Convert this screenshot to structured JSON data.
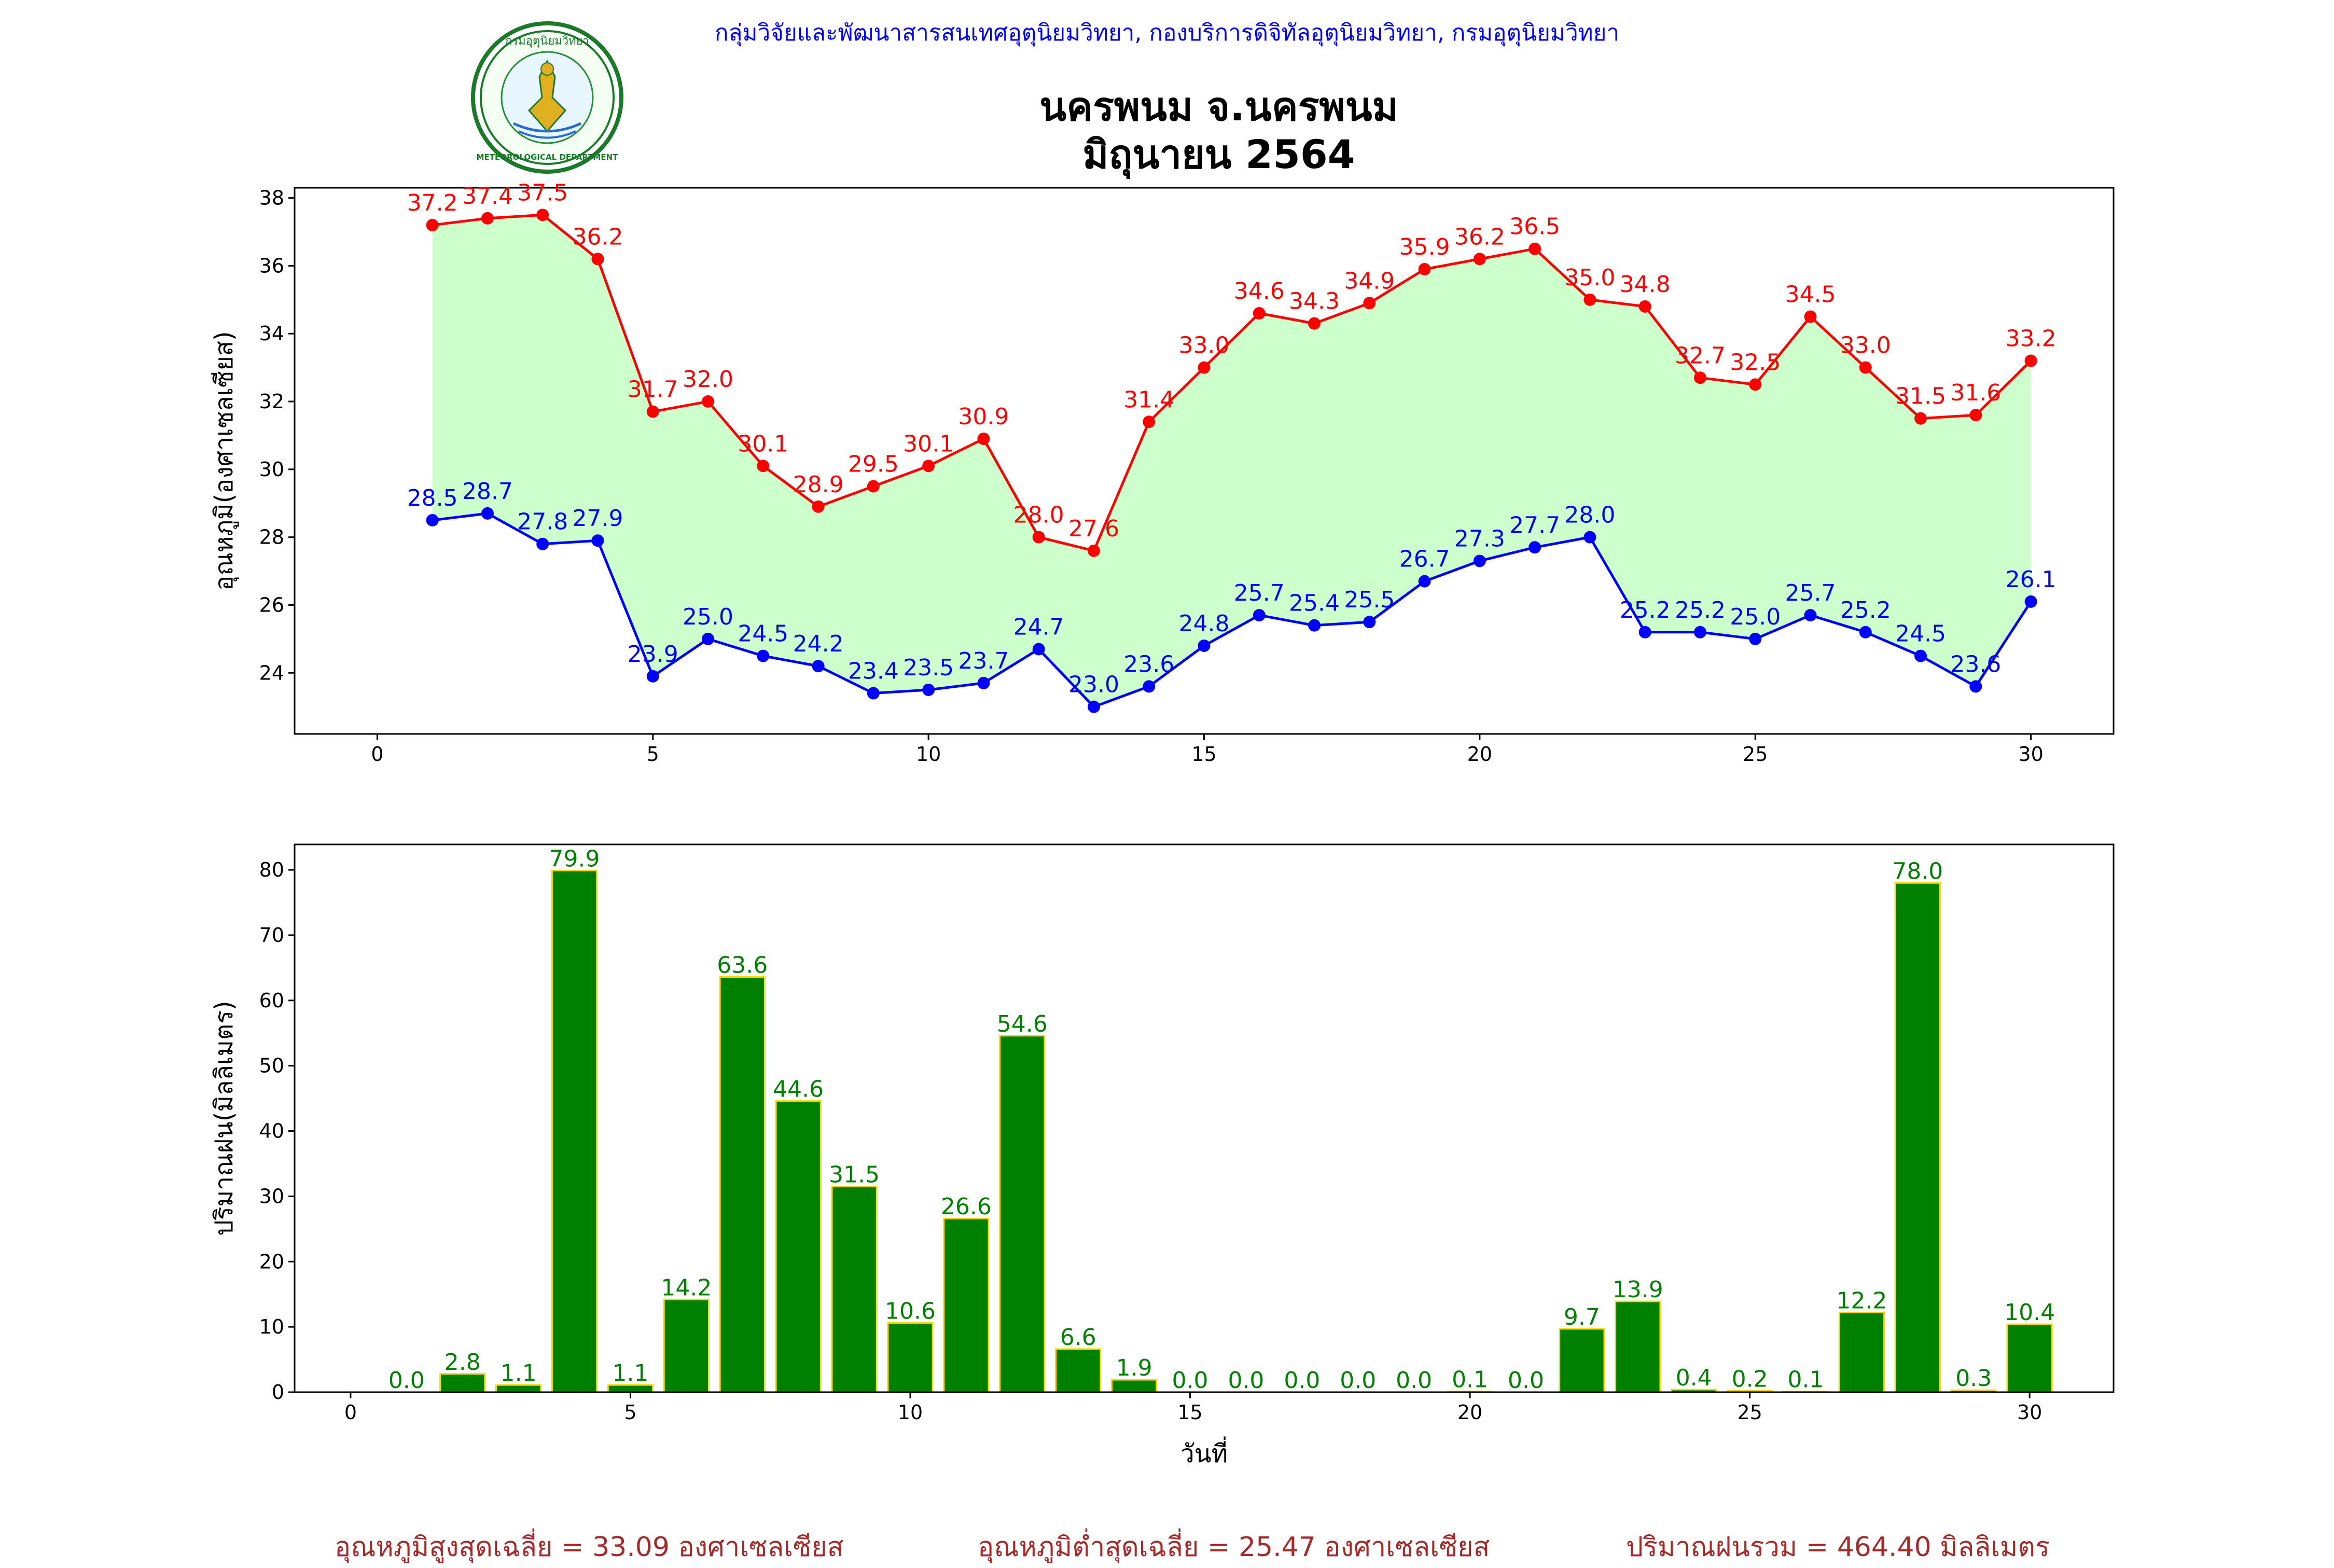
{
  "header": {
    "org_line": "กลุ่มวิจัยและพัฒนาสารสนเทศอุตุนิยมวิทยา, กองบริการดิจิทัลอุตุนิยมวิทยา, กรมอุตุนิยมวิทยา",
    "title_line1": "นครพนม จ.นครพนม",
    "title_line2": "มิถุนายน 2564",
    "logo": {
      "icon": "meteorological-department-seal-icon",
      "text_top": "กรมอุตุนิยมวิทยา",
      "text_bottom": "METEOROLOGICAL DEPARTMENT"
    }
  },
  "chart_data": [
    {
      "type": "line",
      "ylabel": "อุณหภูมิ(องศาเซลเซียส)",
      "xlabel": "",
      "xlim": [
        -1.5,
        31.5
      ],
      "ylim": [
        22.2,
        38.3
      ],
      "xticks": [
        0,
        5,
        10,
        15,
        20,
        25,
        30
      ],
      "yticks": [
        24,
        26,
        28,
        30,
        32,
        34,
        36,
        38
      ],
      "fill_between": true,
      "colors": {
        "max": "#ff0000",
        "min": "#0000ff",
        "fill": "#ccffcc"
      },
      "x": [
        1,
        2,
        3,
        4,
        5,
        6,
        7,
        8,
        9,
        10,
        11,
        12,
        13,
        14,
        15,
        16,
        17,
        18,
        19,
        20,
        21,
        22,
        23,
        24,
        25,
        26,
        27,
        28,
        29,
        30
      ],
      "series": [
        {
          "key": "max",
          "values": [
            37.2,
            37.4,
            37.5,
            36.2,
            31.7,
            32.0,
            30.1,
            28.9,
            29.5,
            30.1,
            30.9,
            28.0,
            27.6,
            31.4,
            33.0,
            34.6,
            34.3,
            34.9,
            35.9,
            36.2,
            36.5,
            35.0,
            34.8,
            32.7,
            32.5,
            34.5,
            33.0,
            31.5,
            31.6,
            33.2
          ]
        },
        {
          "key": "min",
          "values": [
            28.5,
            28.7,
            27.8,
            27.9,
            23.9,
            25.0,
            24.5,
            24.2,
            23.4,
            23.5,
            23.7,
            24.7,
            23.0,
            23.6,
            24.8,
            25.7,
            25.4,
            25.5,
            26.7,
            27.3,
            27.7,
            28.0,
            25.2,
            25.2,
            25.0,
            25.7,
            25.2,
            24.5,
            23.6,
            26.1
          ]
        }
      ]
    },
    {
      "type": "bar",
      "ylabel": "ปริมาณฝน(มิลลิเมตร)",
      "xlabel": "วันที่",
      "xlim": [
        -1,
        31.5
      ],
      "ylim": [
        0,
        83.9
      ],
      "xticks": [
        0,
        5,
        10,
        15,
        20,
        25,
        30
      ],
      "yticks": [
        0,
        10,
        20,
        30,
        40,
        50,
        60,
        70,
        80
      ],
      "colors": {
        "bar": "#008000",
        "edge": "#ffd700",
        "label": "#008000"
      },
      "x": [
        1,
        2,
        3,
        4,
        5,
        6,
        7,
        8,
        9,
        10,
        11,
        12,
        13,
        14,
        15,
        16,
        17,
        18,
        19,
        20,
        21,
        22,
        23,
        24,
        25,
        26,
        27,
        28,
        29,
        30
      ],
      "values": [
        0.0,
        2.8,
        1.1,
        79.9,
        1.1,
        14.2,
        63.6,
        44.6,
        31.5,
        10.6,
        26.6,
        54.6,
        6.6,
        1.9,
        0.0,
        0.0,
        0.0,
        0.0,
        0.0,
        0.1,
        0.0,
        9.7,
        13.9,
        0.4,
        0.2,
        0.1,
        12.2,
        78.0,
        0.3,
        10.4
      ]
    }
  ],
  "footer": {
    "avg_max": "อุณหภูมิสูงสุดเฉลี่ย = 33.09 องศาเซลเซียส",
    "avg_min": "อุณหภูมิต่ำสุดเฉลี่ย = 25.47 องศาเซลเซียส",
    "total_rain": "ปริมาณฝนรวม = 464.40 มิลลิเมตร"
  }
}
